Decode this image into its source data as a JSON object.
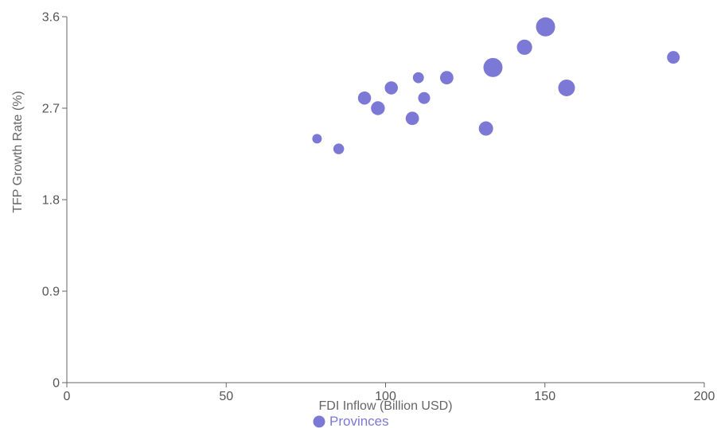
{
  "chart_data": {
    "type": "scatter",
    "xlabel": "FDI Inflow (Billion USD)",
    "ylabel": "TFP Growth Rate (%)",
    "xlim": [
      0,
      200
    ],
    "ylim": [
      0,
      3.6
    ],
    "xticks": [
      0,
      50,
      100,
      150,
      200
    ],
    "yticks": [
      0,
      0.9,
      1.8,
      2.7,
      3.6
    ],
    "xtick_labels": [
      "0",
      "50",
      "100",
      "150",
      "200"
    ],
    "ytick_labels": [
      "0",
      "0.9",
      "1.8",
      "2.7",
      "3.6"
    ],
    "grid": false,
    "legend_position": "bottom-center",
    "series": [
      {
        "name": "Provinces",
        "color": "#7b78d6",
        "points": [
          {
            "x": 78.5,
            "y": 2.4,
            "size": 1
          },
          {
            "x": 85.3,
            "y": 2.3,
            "size": 1.5
          },
          {
            "x": 93.4,
            "y": 2.8,
            "size": 2.5
          },
          {
            "x": 97.6,
            "y": 2.7,
            "size": 2.8
          },
          {
            "x": 101.8,
            "y": 2.9,
            "size": 2.5
          },
          {
            "x": 108.4,
            "y": 2.6,
            "size": 2.6
          },
          {
            "x": 110.3,
            "y": 3.0,
            "size": 1.6
          },
          {
            "x": 112.1,
            "y": 2.8,
            "size": 2.0
          },
          {
            "x": 119.2,
            "y": 3.0,
            "size": 2.6
          },
          {
            "x": 131.5,
            "y": 2.5,
            "size": 3.0
          },
          {
            "x": 133.7,
            "y": 3.1,
            "size": 5.0
          },
          {
            "x": 143.6,
            "y": 3.3,
            "size": 3.4
          },
          {
            "x": 150.2,
            "y": 3.5,
            "size": 5.0
          },
          {
            "x": 156.8,
            "y": 2.9,
            "size": 4.0
          },
          {
            "x": 190.3,
            "y": 3.2,
            "size": 2.3
          }
        ]
      }
    ]
  }
}
